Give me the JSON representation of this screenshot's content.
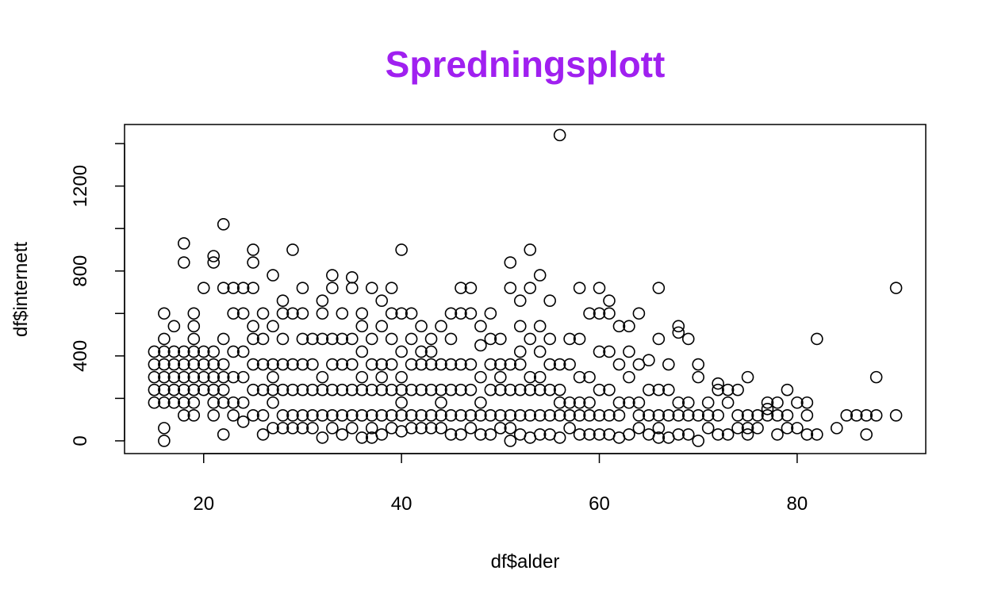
{
  "title_color": "#a020f0",
  "chart_data": {
    "type": "scatter",
    "title": "Spredningsplott",
    "xlabel": "df$alder",
    "ylabel": "df$internett",
    "xlim": [
      12,
      93
    ],
    "ylim": [
      -60,
      1490
    ],
    "x_ticks": [
      20,
      40,
      60,
      80
    ],
    "y_ticks": [
      0,
      400,
      800,
      1200
    ],
    "x_tick_labels": [
      "20",
      "40",
      "60",
      "80"
    ],
    "y_tick_labels": [
      "0",
      "400",
      "800",
      "1200"
    ],
    "marker": "open-circle",
    "grid": false,
    "legend": "none",
    "series": [
      {
        "x": [
          15,
          15,
          15,
          15,
          15,
          16,
          16,
          16,
          16,
          16,
          16,
          16,
          16,
          16,
          17,
          17,
          17,
          17,
          17,
          17,
          18,
          18,
          18,
          18,
          18,
          18,
          18,
          18,
          19,
          19,
          19,
          19,
          19,
          19,
          19,
          19,
          19,
          20,
          20,
          20,
          20,
          20,
          21,
          21,
          21,
          21,
          21,
          21,
          21,
          21,
          22,
          22,
          22,
          22,
          22,
          22,
          22,
          22,
          23,
          23,
          23,
          23,
          23,
          23,
          24,
          24,
          24,
          24,
          24,
          24,
          25,
          25,
          25,
          25,
          25,
          25,
          25,
          25,
          26,
          26,
          26,
          26,
          26,
          26,
          27,
          27,
          27,
          27,
          27,
          27,
          27,
          28,
          28,
          28,
          28,
          28,
          28,
          28,
          29,
          29,
          29,
          29,
          29,
          29,
          30,
          30,
          30,
          30,
          30,
          30,
          30,
          31,
          31,
          31,
          31,
          31,
          32,
          32,
          32,
          32,
          32,
          32,
          32,
          33,
          33,
          33,
          33,
          33,
          33,
          33,
          34,
          34,
          34,
          34,
          34,
          34,
          35,
          35,
          35,
          35,
          35,
          35,
          35,
          36,
          36,
          36,
          36,
          36,
          36,
          36,
          37,
          37,
          37,
          37,
          37,
          37,
          37,
          38,
          38,
          38,
          38,
          38,
          38,
          38,
          39,
          39,
          39,
          39,
          39,
          39,
          39,
          40,
          40,
          40,
          40,
          40,
          40,
          40,
          40,
          41,
          41,
          41,
          41,
          41,
          41,
          42,
          42,
          42,
          42,
          42,
          42,
          43,
          43,
          43,
          43,
          43,
          43,
          44,
          44,
          44,
          44,
          44,
          44,
          45,
          45,
          45,
          45,
          45,
          45,
          46,
          46,
          46,
          46,
          46,
          46,
          47,
          47,
          47,
          47,
          47,
          47,
          48,
          48,
          48,
          48,
          48,
          48,
          49,
          49,
          49,
          49,
          49,
          49,
          50,
          50,
          50,
          50,
          50,
          50,
          51,
          51,
          51,
          51,
          51,
          51,
          51,
          52,
          52,
          52,
          52,
          52,
          52,
          52,
          53,
          53,
          53,
          53,
          53,
          53,
          53,
          54,
          54,
          54,
          54,
          54,
          54,
          54,
          55,
          55,
          55,
          55,
          55,
          55,
          56,
          56,
          56,
          56,
          56,
          56,
          57,
          57,
          57,
          57,
          57,
          58,
          58,
          58,
          58,
          58,
          58,
          59,
          59,
          59,
          59,
          59,
          60,
          60,
          60,
          60,
          60,
          60,
          61,
          61,
          61,
          61,
          61,
          61,
          62,
          62,
          62,
          62,
          62,
          63,
          63,
          63,
          63,
          63,
          64,
          64,
          64,
          64,
          64,
          65,
          65,
          65,
          65,
          66,
          66,
          66,
          66,
          66,
          66,
          67,
          67,
          67,
          67,
          68,
          68,
          68,
          68,
          68,
          69,
          69,
          69,
          69,
          70,
          70,
          70,
          70,
          71,
          71,
          71,
          72,
          72,
          72,
          72,
          73,
          73,
          73,
          74,
          74,
          74,
          75,
          75,
          75,
          75,
          76,
          76,
          77,
          77,
          77,
          78,
          78,
          78,
          79,
          79,
          79,
          80,
          80,
          81,
          81,
          81,
          82,
          82,
          84,
          85,
          86,
          87,
          87,
          88,
          88,
          90,
          90
        ],
        "y": [
          180,
          240,
          300,
          360,
          420,
          0,
          60,
          180,
          240,
          300,
          360,
          420,
          480,
          600,
          180,
          240,
          300,
          360,
          420,
          540,
          120,
          180,
          240,
          300,
          360,
          420,
          840,
          930,
          120,
          180,
          240,
          300,
          360,
          420,
          480,
          540,
          600,
          240,
          300,
          360,
          420,
          720,
          120,
          180,
          240,
          300,
          360,
          420,
          840,
          870,
          30,
          180,
          240,
          300,
          360,
          480,
          720,
          1020,
          120,
          180,
          300,
          420,
          600,
          720,
          90,
          180,
          300,
          420,
          600,
          720,
          120,
          240,
          360,
          480,
          540,
          720,
          840,
          900,
          30,
          120,
          240,
          360,
          480,
          600,
          60,
          180,
          240,
          300,
          360,
          540,
          780,
          60,
          120,
          240,
          360,
          480,
          600,
          660,
          60,
          120,
          240,
          360,
          600,
          900,
          60,
          120,
          240,
          360,
          480,
          600,
          720,
          60,
          120,
          240,
          360,
          480,
          15,
          120,
          240,
          300,
          480,
          600,
          660,
          60,
          120,
          240,
          360,
          480,
          720,
          780,
          30,
          120,
          240,
          360,
          480,
          600,
          60,
          120,
          240,
          360,
          480,
          720,
          770,
          15,
          120,
          240,
          300,
          420,
          540,
          600,
          15,
          60,
          120,
          240,
          360,
          480,
          720,
          30,
          120,
          240,
          300,
          360,
          540,
          660,
          60,
          120,
          240,
          360,
          480,
          600,
          720,
          45,
          120,
          180,
          240,
          300,
          420,
          600,
          900,
          60,
          120,
          240,
          360,
          480,
          600,
          60,
          120,
          240,
          360,
          420,
          540,
          60,
          120,
          240,
          360,
          420,
          480,
          60,
          120,
          180,
          240,
          360,
          540,
          30,
          120,
          240,
          360,
          480,
          600,
          30,
          120,
          240,
          360,
          600,
          720,
          60,
          120,
          240,
          360,
          600,
          720,
          30,
          120,
          180,
          300,
          450,
          540,
          30,
          120,
          240,
          360,
          480,
          600,
          60,
          120,
          240,
          300,
          360,
          480,
          0,
          60,
          120,
          240,
          360,
          720,
          840,
          30,
          120,
          240,
          360,
          420,
          540,
          660,
          15,
          120,
          240,
          300,
          480,
          720,
          900,
          30,
          120,
          240,
          300,
          420,
          540,
          780,
          30,
          120,
          240,
          360,
          480,
          660,
          15,
          120,
          180,
          240,
          360,
          1440,
          60,
          120,
          180,
          360,
          480,
          30,
          120,
          180,
          300,
          480,
          720,
          30,
          120,
          180,
          300,
          600,
          30,
          120,
          240,
          420,
          600,
          720,
          30,
          120,
          240,
          420,
          600,
          660,
          15,
          120,
          180,
          360,
          540,
          30,
          180,
          300,
          420,
          540,
          60,
          120,
          180,
          360,
          600,
          30,
          120,
          240,
          380,
          15,
          60,
          120,
          240,
          480,
          720,
          15,
          120,
          240,
          360,
          30,
          120,
          180,
          510,
          540,
          30,
          120,
          180,
          480,
          0,
          120,
          300,
          360,
          60,
          120,
          180,
          30,
          120,
          240,
          270,
          30,
          180,
          240,
          60,
          120,
          240,
          30,
          60,
          120,
          300,
          120,
          60,
          120,
          150,
          180,
          30,
          120,
          180,
          60,
          120,
          240,
          60,
          180,
          30,
          120,
          180,
          30,
          480,
          60,
          120,
          120,
          30,
          120,
          120,
          300,
          120,
          720
        ]
      }
    ]
  }
}
